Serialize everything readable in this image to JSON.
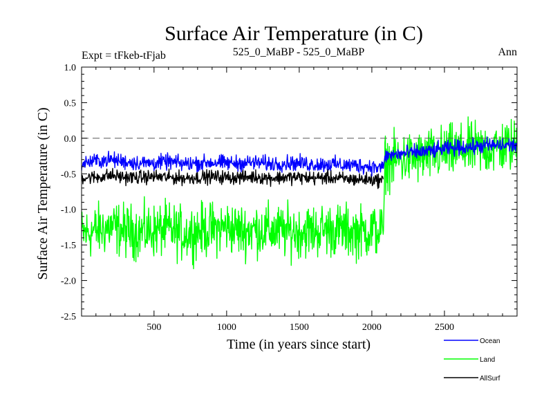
{
  "chart_data": {
    "type": "line",
    "title": "Surface Air Temperature (in C)",
    "header_left": "Expt = tFkeb-tFjab",
    "header_center": "525_0_MaBP - 525_0_MaBP",
    "header_right": "Ann",
    "xlabel": "Time (in years since start)",
    "ylabel": "Surface Air Temperature (in C)",
    "xlim": [
      1,
      3000
    ],
    "ylim": [
      -2.5,
      1.0
    ],
    "xticks": [
      500,
      1000,
      1500,
      2000,
      2500
    ],
    "xtick_labels": [
      "500",
      "1000",
      "1500",
      "2000",
      "2500"
    ],
    "yticks": [
      1.0,
      0.5,
      0.0,
      -0.5,
      -1.0,
      -1.5,
      -2.0,
      -2.5
    ],
    "ytick_labels": [
      "1.0",
      "0.5",
      "0.0",
      "-0.5",
      "-1.0",
      "-1.5",
      "-2.0",
      "-2.5"
    ],
    "zero_line": "dashed",
    "grid": false,
    "legend": "bottom-right, outside plot",
    "series": [
      {
        "name": "Land",
        "color": "#00ff00",
        "x": [
          1,
          100,
          200,
          300,
          400,
          500,
          600,
          700,
          800,
          900,
          1000,
          1100,
          1200,
          1300,
          1400,
          1500,
          1600,
          1700,
          1800,
          1900,
          2000,
          2080,
          2090,
          2200,
          2300,
          2400,
          2500,
          2600,
          2700,
          2800,
          2900,
          3000
        ],
        "values": [
          -1.35,
          -1.3,
          -1.25,
          -1.3,
          -1.32,
          -1.3,
          -1.28,
          -1.35,
          -1.3,
          -1.28,
          -1.25,
          -1.3,
          -1.28,
          -1.3,
          -1.32,
          -1.3,
          -1.3,
          -1.28,
          -1.3,
          -1.32,
          -1.3,
          -1.3,
          -0.35,
          -0.3,
          -0.28,
          -0.25,
          -0.2,
          -0.18,
          -0.15,
          -0.15,
          -0.12,
          -0.1
        ]
      },
      {
        "name": "AllSurf",
        "color": "#000000",
        "x": [
          1,
          100,
          200,
          300,
          400,
          500,
          600,
          700,
          800,
          900,
          1000,
          1100,
          1200,
          1300,
          1400,
          1500,
          1600,
          1700,
          1800,
          1900,
          2000,
          2080
        ],
        "values": [
          -0.55,
          -0.55,
          -0.52,
          -0.55,
          -0.55,
          -0.54,
          -0.55,
          -0.56,
          -0.55,
          -0.54,
          -0.55,
          -0.55,
          -0.54,
          -0.56,
          -0.55,
          -0.55,
          -0.56,
          -0.55,
          -0.57,
          -0.58,
          -0.58,
          -0.6
        ]
      },
      {
        "name": "Ocean",
        "color": "#0000ff",
        "x": [
          1,
          100,
          200,
          300,
          400,
          500,
          600,
          700,
          800,
          900,
          1000,
          1100,
          1200,
          1300,
          1400,
          1500,
          1600,
          1700,
          1800,
          1900,
          2000,
          2080,
          2090,
          2200,
          2300,
          2400,
          2500,
          2600,
          2700,
          2800,
          2900,
          3000
        ],
        "values": [
          -0.35,
          -0.32,
          -0.3,
          -0.33,
          -0.35,
          -0.35,
          -0.33,
          -0.36,
          -0.35,
          -0.34,
          -0.35,
          -0.35,
          -0.34,
          -0.36,
          -0.35,
          -0.35,
          -0.37,
          -0.36,
          -0.38,
          -0.38,
          -0.4,
          -0.42,
          -0.25,
          -0.22,
          -0.2,
          -0.18,
          -0.15,
          -0.13,
          -0.12,
          -0.1,
          -0.1,
          -0.1
        ]
      }
    ],
    "legend_entries": [
      {
        "name": "Ocean",
        "color": "#0000ff"
      },
      {
        "name": "Land",
        "color": "#00ff00"
      },
      {
        "name": "AllSurf",
        "color": "#000000"
      }
    ]
  }
}
